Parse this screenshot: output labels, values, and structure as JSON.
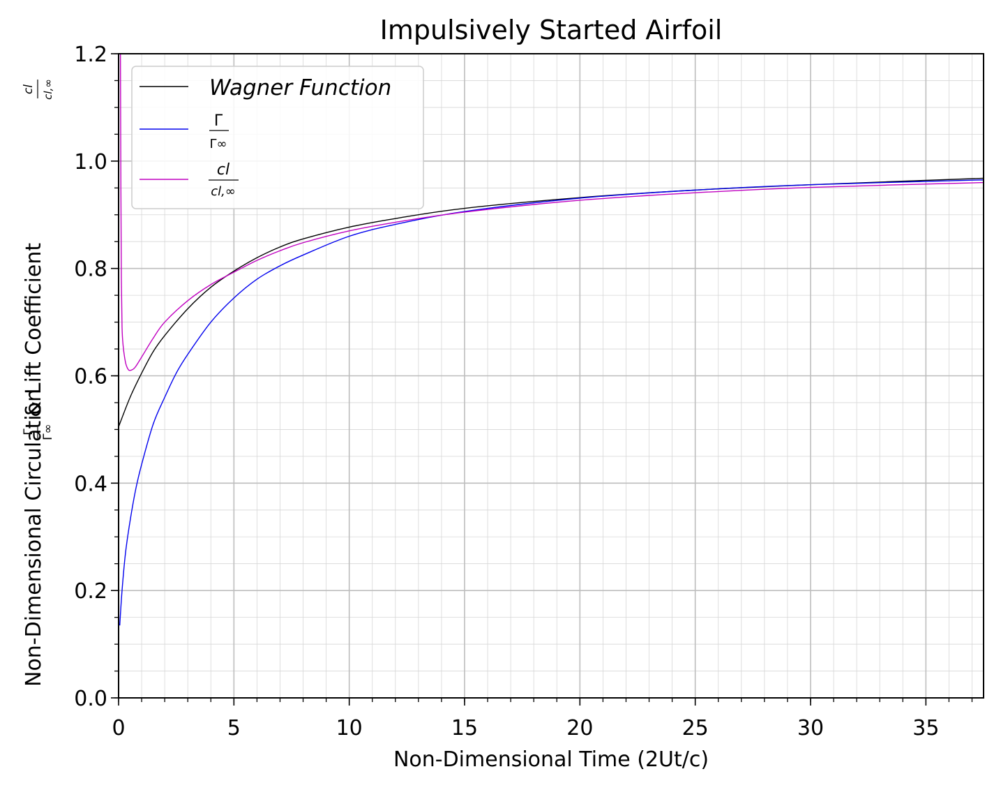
{
  "chart_data": {
    "type": "line",
    "title": "Impulsively Started Airfoil",
    "xlabel": "Non-Dimensional Time (2Ut/c)",
    "ylabel": {
      "prefix": "Non-Dimensional Circulation",
      "frac1_num": "Γ",
      "frac1_den": "Γ∞",
      "middle": "& Lift Coefficient",
      "frac2_num": "cl",
      "frac2_den": "cl,∞"
    },
    "xlim": [
      0,
      37.5
    ],
    "ylim": [
      0,
      1.2
    ],
    "xticks": [
      0,
      5,
      10,
      15,
      20,
      25,
      30,
      35
    ],
    "xtick_labels": [
      "0",
      "5",
      "10",
      "15",
      "20",
      "25",
      "30",
      "35"
    ],
    "yticks": [
      0.0,
      0.2,
      0.4,
      0.6,
      0.8,
      1.0,
      1.2
    ],
    "ytick_labels": [
      "0.0",
      "0.2",
      "0.4",
      "0.6",
      "0.8",
      "1.0",
      "1.2"
    ],
    "x_minor_step": 1,
    "y_minor_step": 0.05,
    "grid": true,
    "legend_position": "top-left",
    "series": [
      {
        "name": "Wagner Function",
        "color": "#000000",
        "x": [
          0,
          0.5,
          1,
          1.5,
          2,
          3,
          4,
          5,
          6,
          7,
          8,
          10,
          12,
          15,
          20,
          25,
          30,
          37.5
        ],
        "y": [
          0.505,
          0.56,
          0.605,
          0.645,
          0.675,
          0.725,
          0.765,
          0.795,
          0.82,
          0.84,
          0.855,
          0.877,
          0.893,
          0.912,
          0.932,
          0.946,
          0.956,
          0.968
        ]
      },
      {
        "name_parts": {
          "num": "Γ",
          "den": "Γ∞"
        },
        "color": "#0000ee",
        "x": [
          0.05,
          0.15,
          0.3,
          0.5,
          0.75,
          1,
          1.5,
          2,
          2.5,
          3,
          4,
          5,
          6,
          7,
          8,
          10,
          12,
          15,
          20,
          25,
          30,
          37.5
        ],
        "y": [
          0.135,
          0.2,
          0.27,
          0.33,
          0.39,
          0.435,
          0.51,
          0.56,
          0.605,
          0.64,
          0.7,
          0.745,
          0.78,
          0.805,
          0.825,
          0.86,
          0.882,
          0.906,
          0.931,
          0.946,
          0.956,
          0.965
        ]
      },
      {
        "name_parts": {
          "num": "cl",
          "den": "cl,∞"
        },
        "color": "#c000c0",
        "x": [
          0.08,
          0.1,
          0.12,
          0.15,
          0.2,
          0.3,
          0.4,
          0.5,
          0.7,
          1,
          1.5,
          2,
          3,
          4,
          5,
          6,
          7,
          8,
          10,
          12,
          15,
          20,
          25,
          30,
          37.5
        ],
        "y": [
          1.2,
          0.95,
          0.78,
          0.69,
          0.655,
          0.625,
          0.613,
          0.61,
          0.615,
          0.635,
          0.67,
          0.7,
          0.74,
          0.77,
          0.793,
          0.815,
          0.833,
          0.848,
          0.87,
          0.886,
          0.905,
          0.927,
          0.941,
          0.951,
          0.96
        ]
      }
    ]
  }
}
